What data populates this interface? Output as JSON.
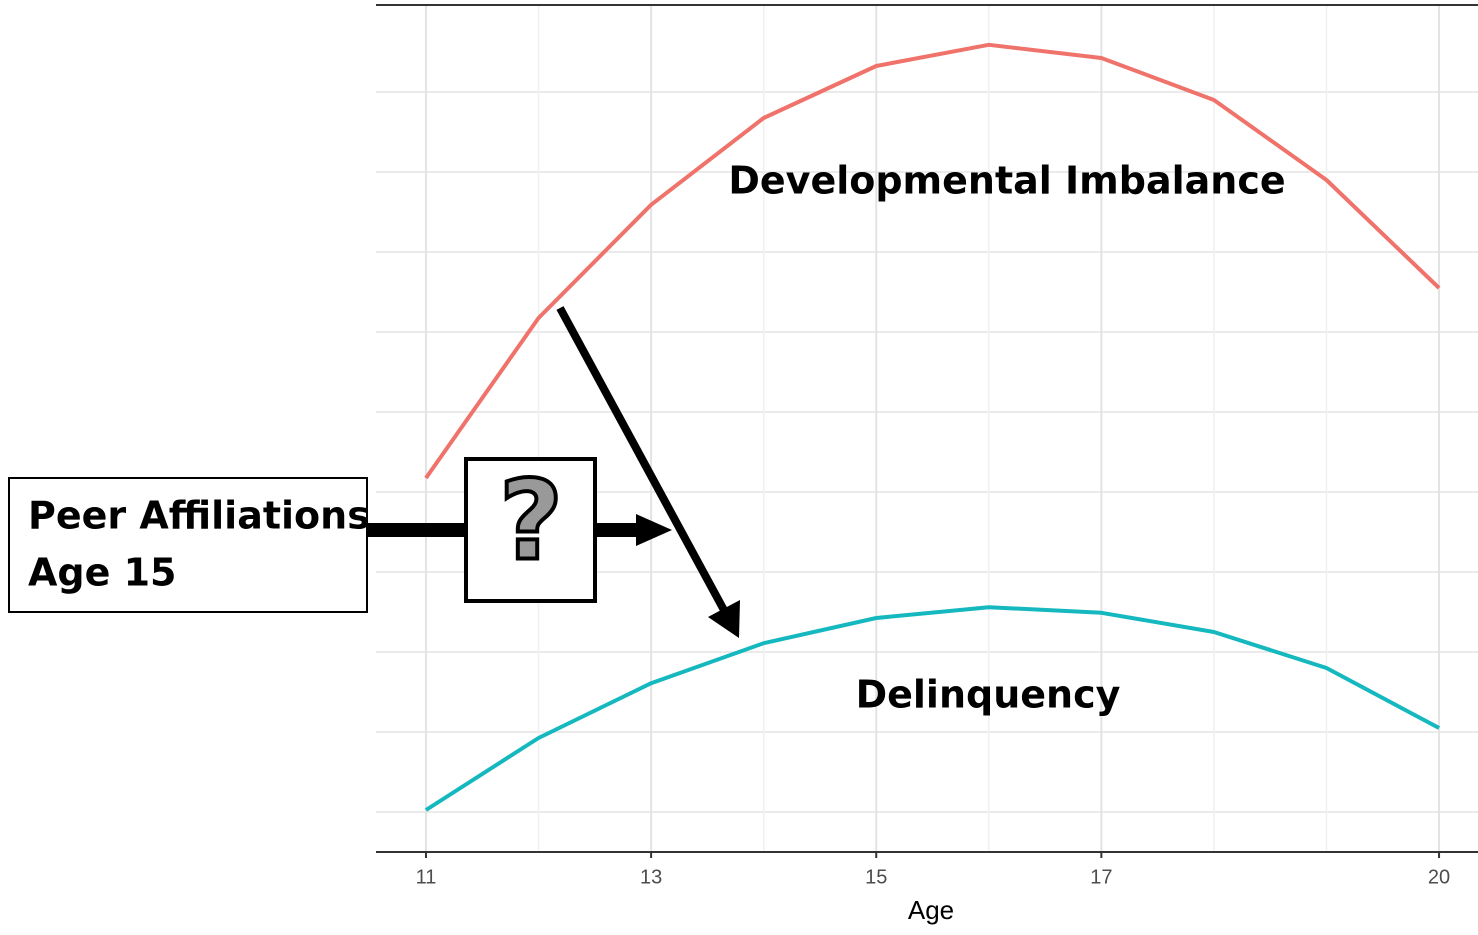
{
  "chart_data": {
    "type": "line",
    "x": [
      11,
      12,
      13,
      14,
      15,
      16,
      17,
      18,
      19,
      20
    ],
    "series": [
      {
        "name": "Developmental Imbalance",
        "color": "#f0736b",
        "values": [
          4.675,
          6.675,
          8.09,
          9.175,
          9.825,
          10.09,
          9.925,
          9.4,
          8.4,
          7.05
        ]
      },
      {
        "name": "Delinquency",
        "color": "#14b8be",
        "values": [
          0.525,
          1.425,
          2.11,
          2.61,
          2.925,
          3.06,
          2.99,
          2.75,
          2.3,
          1.55
        ]
      }
    ],
    "xlim": [
      10.556,
      20.346
    ],
    "xticks": [
      11,
      13,
      15,
      17,
      20
    ],
    "ylim": [
      0,
      10.5875
    ],
    "yticks": [
      0.5,
      1.5,
      2.5,
      3.5,
      4.5,
      5.5,
      6.5,
      7.5,
      8.5,
      9.5
    ],
    "grid": true,
    "x_label": "Age",
    "annotations": {
      "predictor": [
        "Peer Affiliations",
        "Age 15"
      ],
      "moderator_symbol": "?"
    }
  }
}
